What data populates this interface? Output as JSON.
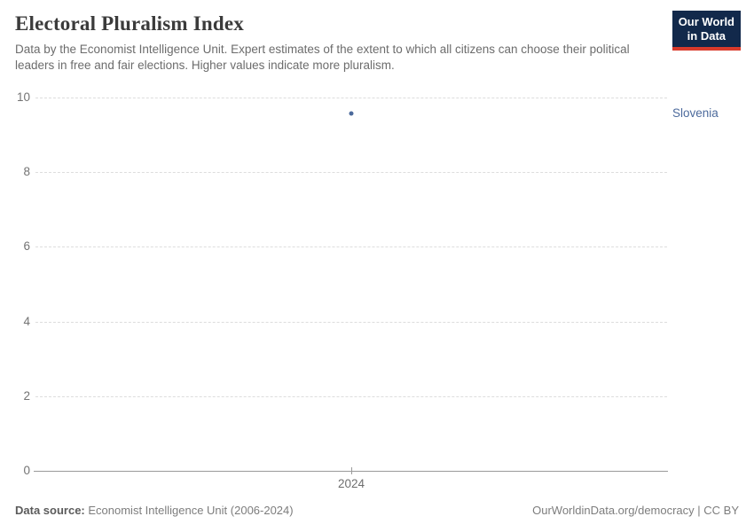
{
  "chart_data": {
    "type": "scatter",
    "title": "Electoral Pluralism Index",
    "subtitle": "Data by the Economist Intelligence Unit. Expert estimates of the extent to which all citizens can choose their political leaders in free and fair elections. Higher values indicate more pluralism.",
    "series": [
      {
        "name": "Slovenia",
        "color": "#4c6a9c",
        "points": [
          {
            "x": 2024,
            "y": 9.58
          }
        ]
      }
    ],
    "xticks": [
      "2024"
    ],
    "yticks": [
      0,
      2,
      4,
      6,
      8,
      10
    ],
    "ylim": [
      0,
      10
    ],
    "grid": "horizontal-dashed",
    "legend_position": "right-of-plot"
  },
  "header": {
    "logo": {
      "line1": "Our World",
      "line2": "in Data",
      "bg_color": "#12294b",
      "accent_color": "#d93a2b"
    }
  },
  "footer": {
    "source_label": "Data source:",
    "source_text": " Economist Intelligence Unit (2006-2024)",
    "credit_text": "OurWorldinData.org/democracy | CC BY"
  }
}
